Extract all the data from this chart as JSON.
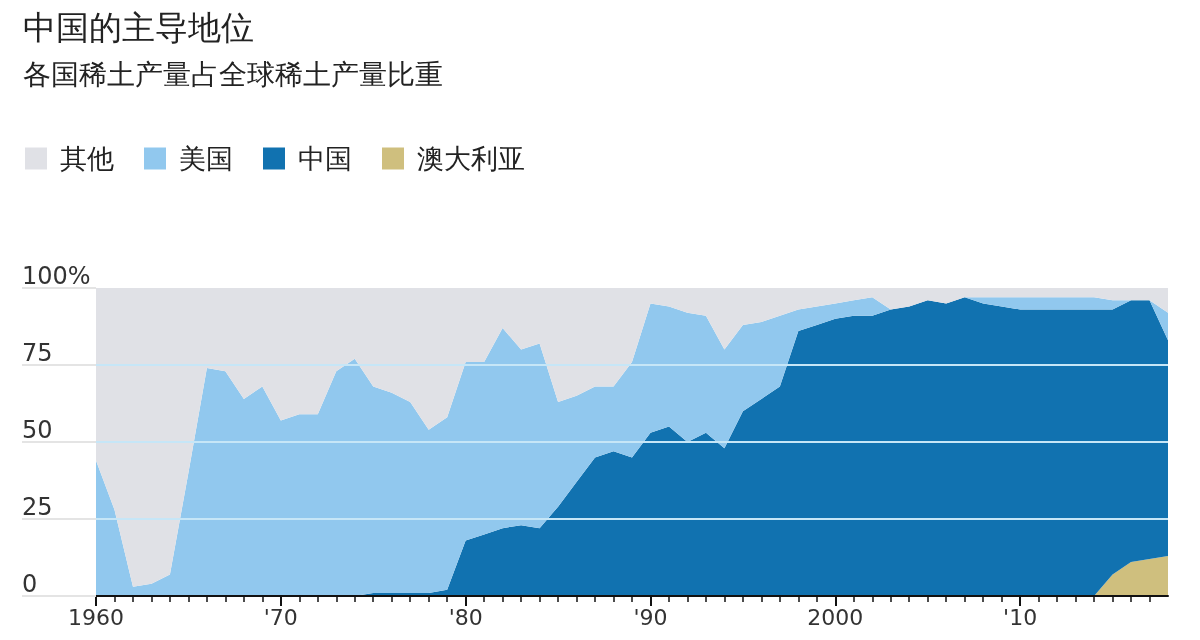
{
  "chart_data": {
    "type": "area",
    "title": "中国的主导地位",
    "subtitle": "各国稀土产量占全球稀土产量比重",
    "stacked": true,
    "grid": "y",
    "legend": "top left",
    "x": [
      1960,
      1961,
      1962,
      1963,
      1964,
      1965,
      1966,
      1967,
      1968,
      1969,
      1970,
      1971,
      1972,
      1973,
      1974,
      1975,
      1976,
      1977,
      1978,
      1979,
      1980,
      1981,
      1982,
      1983,
      1984,
      1985,
      1986,
      1987,
      1988,
      1989,
      1990,
      1991,
      1992,
      1993,
      1994,
      1995,
      1996,
      1997,
      1998,
      1999,
      2000,
      2001,
      2002,
      2003,
      2004,
      2005,
      2006,
      2007,
      2008,
      2009,
      2010,
      2011,
      2012,
      2013,
      2014,
      2015,
      2016,
      2017,
      2018
    ],
    "xlim": [
      1960,
      2018
    ],
    "xticks": [
      1960,
      {
        "value": 1970,
        "label": "'70"
      },
      {
        "value": 1980,
        "label": "'80"
      },
      {
        "value": 1990,
        "label": "'90"
      },
      2000,
      {
        "value": 2010,
        "label": "'10"
      }
    ],
    "ylim": [
      0,
      100
    ],
    "yticks": [
      0,
      25,
      50,
      75,
      {
        "value": 100,
        "label": "100%"
      }
    ],
    "series": [
      {
        "name": "澳大利亚",
        "color": "#cfbf7e",
        "values": [
          0,
          0,
          0,
          0,
          0,
          0,
          0,
          0,
          0,
          0,
          0,
          0,
          0,
          0,
          0,
          0,
          0,
          0,
          0,
          0,
          0,
          0,
          0,
          0,
          0,
          0,
          0,
          0,
          0,
          0,
          0,
          0,
          0,
          0,
          0,
          0,
          0,
          0,
          0,
          0,
          0,
          0,
          0,
          0,
          0,
          0,
          0,
          0,
          0,
          0,
          0,
          0,
          0,
          0,
          0,
          7,
          11,
          12,
          13
        ]
      },
      {
        "name": "中国",
        "color": "#1172b0",
        "values": [
          0,
          0,
          0,
          0,
          0,
          0,
          0,
          0,
          0,
          0,
          0,
          0,
          0,
          0,
          0,
          1,
          1,
          1,
          1,
          2,
          18,
          20,
          22,
          23,
          22,
          29,
          37,
          45,
          47,
          45,
          53,
          55,
          50,
          53,
          48,
          60,
          64,
          68,
          86,
          88,
          90,
          91,
          91,
          93,
          94,
          96,
          95,
          97,
          95,
          94,
          93,
          93,
          93,
          93,
          93,
          86,
          85,
          84,
          70
        ]
      },
      {
        "name": "美国",
        "color": "#91c8ee",
        "values": [
          44,
          28,
          3,
          4,
          7,
          40,
          74,
          73,
          64,
          68,
          57,
          59,
          59,
          73,
          77,
          67,
          65,
          62,
          53,
          56,
          58,
          56,
          65,
          57,
          60,
          34,
          28,
          23,
          21,
          31,
          42,
          39,
          42,
          38,
          32,
          28,
          25,
          23,
          7,
          6,
          5,
          5,
          6,
          0,
          null,
          null,
          null,
          0,
          2,
          3,
          4,
          4,
          4,
          4,
          4,
          3,
          0,
          0,
          9
        ]
      },
      {
        "name": "其他",
        "color": "#e0e1e6",
        "values": [
          56,
          72,
          97,
          96,
          93,
          60,
          26,
          27,
          36,
          32,
          43,
          41,
          41,
          27,
          23,
          32,
          34,
          37,
          46,
          42,
          24,
          24,
          13,
          20,
          18,
          37,
          35,
          32,
          32,
          24,
          5,
          6,
          8,
          9,
          20,
          12,
          11,
          9,
          7,
          6,
          5,
          4,
          3,
          7,
          6,
          4,
          5,
          3,
          3,
          3,
          3,
          3,
          3,
          3,
          3,
          4,
          4,
          4,
          8
        ]
      }
    ]
  }
}
